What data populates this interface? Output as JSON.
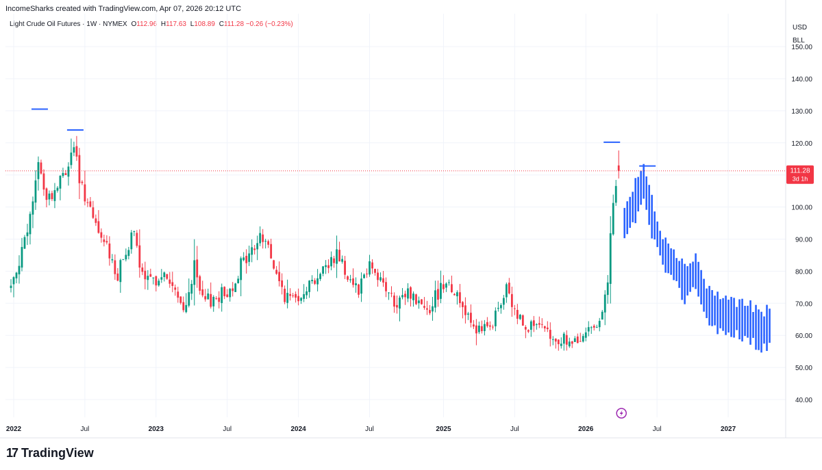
{
  "header": {
    "credit": "IncomeSharks created with TradingView.com, Apr 07, 2026 20:12 UTC"
  },
  "legend": {
    "symbol": "Light Crude Oil Futures · 1W · NYMEX",
    "o_label": "O",
    "o": "112.96",
    "h_label": "H",
    "h": "117.63",
    "l_label": "L",
    "l": "108.89",
    "c_label": "C",
    "c": "111.28",
    "change": "−0.26 (−0.23%)"
  },
  "axis": {
    "currency": "USD",
    "unit": "BLL"
  },
  "price_tag": {
    "price": "111.28",
    "countdown": "3d 1h"
  },
  "logo": {
    "text": "TradingView"
  },
  "chart_data": {
    "type": "candlestick",
    "y_ticks": [
      "40.00",
      "50.00",
      "60.00",
      "70.00",
      "80.00",
      "90.00",
      "100.00",
      "110.00",
      "120.00",
      "130.00",
      "140.00",
      "150.00"
    ],
    "x_ticks": [
      "2022",
      "Jul",
      "2023",
      "Jul",
      "2024",
      "Jul",
      "2025",
      "Jul",
      "2026",
      "Jul",
      "2027"
    ],
    "ylim": [
      35,
      155
    ],
    "last_price": 111.28,
    "colors": {
      "up": "#089981",
      "down": "#f23645",
      "projection": "#2962ff",
      "grid": "#f0f3fa"
    },
    "anchors": [
      [
        "2021-12-27",
        75
      ],
      [
        "2022-01-17",
        84
      ],
      [
        "2022-02-07",
        91
      ],
      [
        "2022-02-28",
        108
      ],
      [
        "2022-03-07",
        115
      ],
      [
        "2022-03-21",
        105
      ],
      [
        "2022-04-11",
        103
      ],
      [
        "2022-05-02",
        108
      ],
      [
        "2022-05-23",
        113
      ],
      [
        "2022-06-06",
        120
      ],
      [
        "2022-06-20",
        107
      ],
      [
        "2022-07-04",
        104
      ],
      [
        "2022-07-25",
        95
      ],
      [
        "2022-08-15",
        90
      ],
      [
        "2022-09-05",
        86
      ],
      [
        "2022-09-26",
        78
      ],
      [
        "2022-10-17",
        87
      ],
      [
        "2022-11-07",
        91
      ],
      [
        "2022-11-28",
        78
      ],
      [
        "2022-12-19",
        76
      ],
      [
        "2023-01-09",
        79
      ],
      [
        "2023-02-06",
        77
      ],
      [
        "2023-03-13",
        67
      ],
      [
        "2023-04-10",
        81
      ],
      [
        "2023-05-01",
        70
      ],
      [
        "2023-06-05",
        72
      ],
      [
        "2023-07-10",
        74
      ],
      [
        "2023-08-07",
        82
      ],
      [
        "2023-09-04",
        86
      ],
      [
        "2023-09-25",
        91
      ],
      [
        "2023-10-16",
        88
      ],
      [
        "2023-11-06",
        78
      ],
      [
        "2023-12-04",
        71
      ],
      [
        "2024-01-01",
        73
      ],
      [
        "2024-02-05",
        77
      ],
      [
        "2024-03-11",
        81
      ],
      [
        "2024-04-08",
        86
      ],
      [
        "2024-05-06",
        79
      ],
      [
        "2024-06-03",
        75
      ],
      [
        "2024-07-01",
        83
      ],
      [
        "2024-08-05",
        76
      ],
      [
        "2024-09-09",
        68
      ],
      [
        "2024-10-07",
        74
      ],
      [
        "2024-11-04",
        70
      ],
      [
        "2024-12-02",
        69
      ],
      [
        "2025-01-13",
        78
      ],
      [
        "2025-02-10",
        72
      ],
      [
        "2025-03-10",
        67
      ],
      [
        "2025-04-07",
        61
      ],
      [
        "2025-05-05",
        62
      ],
      [
        "2025-06-16",
        74
      ],
      [
        "2025-07-07",
        67
      ],
      [
        "2025-08-04",
        64
      ],
      [
        "2025-09-08",
        62
      ],
      [
        "2025-10-13",
        58
      ],
      [
        "2025-11-10",
        59
      ],
      [
        "2025-12-08",
        57
      ],
      [
        "2026-01-05",
        60
      ],
      [
        "2026-02-09",
        66
      ],
      [
        "2026-03-02",
        74
      ],
      [
        "2026-03-09",
        92
      ],
      [
        "2026-03-16",
        100
      ],
      [
        "2026-03-30",
        111.28
      ]
    ],
    "projection": [
      [
        "2026-04-13",
        95
      ],
      [
        "2026-05-04",
        100
      ],
      [
        "2026-06-01",
        108
      ],
      [
        "2026-06-22",
        97
      ],
      [
        "2026-07-20",
        86
      ],
      [
        "2026-08-17",
        82
      ],
      [
        "2026-09-14",
        76
      ],
      [
        "2026-10-12",
        80
      ],
      [
        "2026-11-09",
        70
      ],
      [
        "2026-12-07",
        67
      ],
      [
        "2027-01-04",
        66
      ],
      [
        "2027-02-01",
        65
      ],
      [
        "2027-03-01",
        64
      ],
      [
        "2027-03-29",
        61
      ],
      [
        "2027-04-19",
        63
      ]
    ],
    "markers": [
      {
        "date": "2022-03-07",
        "price": 130.5
      },
      {
        "date": "2022-06-06",
        "price": 124.0
      },
      {
        "date": "2026-03-09",
        "price": 120.2
      },
      {
        "date": "2026-06-08",
        "price": 112.8
      }
    ]
  }
}
